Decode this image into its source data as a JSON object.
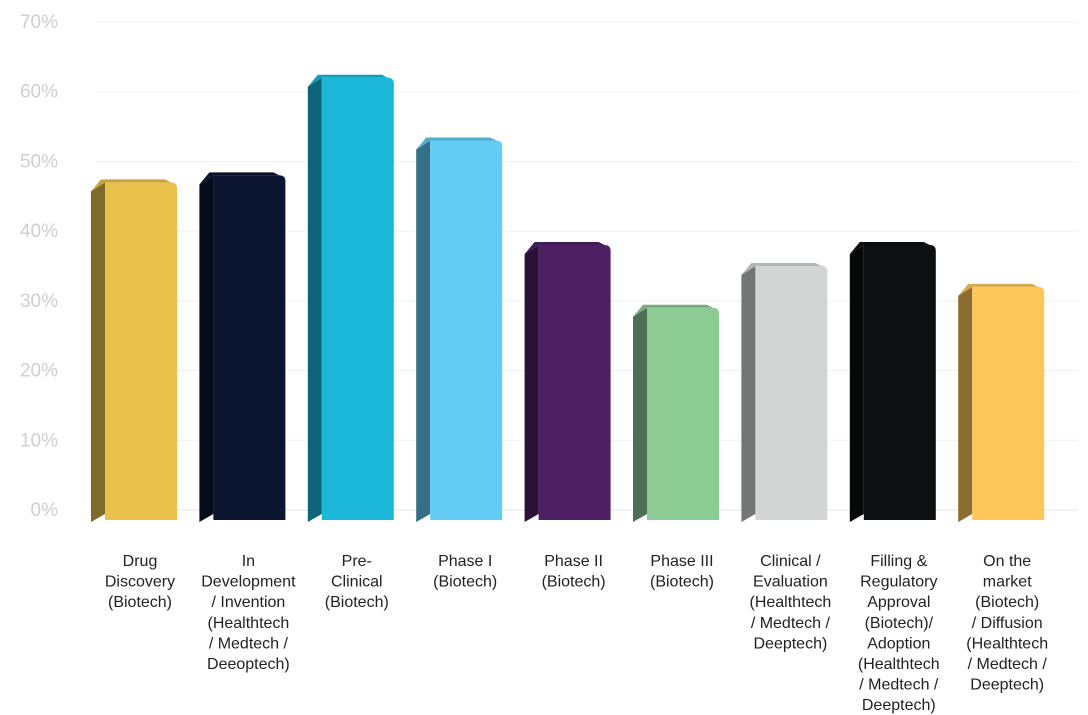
{
  "chart_data": {
    "type": "bar",
    "title": "",
    "xlabel": "",
    "ylabel": "",
    "ylim": [
      0,
      70
    ],
    "yticks": [
      "0%",
      "10%",
      "20%",
      "30%",
      "40%",
      "50%",
      "60%",
      "70%"
    ],
    "grid": true,
    "legend": "none",
    "categories": [
      "Drug Discovery (Biotech)",
      "In Development / Invention (Healthtech / Medtech / Deeoptech)",
      "Pre-Clinical (Biotech)",
      "Phase I (Biotech)",
      "Phase II (Biotech)",
      "Phase III (Biotech)",
      "Clinical / Evaluation (Healthtech / Medtech / Deeptech)",
      "Filling & Regulatory Approval (Biotech)/ Adoption (Healthtech / Medtech / Deeptech)",
      "On the market (Biotech) / Diffusion (Healthtech / Medtech / Deeptech)"
    ],
    "category_label_lines": [
      [
        "Drug",
        "Discovery",
        "(Biotech)"
      ],
      [
        "In",
        "Development",
        "/ Invention",
        "(Healthtech",
        "/ Medtech /",
        "Deeoptech)"
      ],
      [
        "Pre-",
        "Clinical",
        "(Biotech)"
      ],
      [
        "Phase I",
        "(Biotech)"
      ],
      [
        "Phase II",
        "(Biotech)"
      ],
      [
        "Phase III",
        "(Biotech)"
      ],
      [
        "Clinical /",
        "Evaluation",
        "(Healthtech",
        "/ Medtech /",
        "Deeptech)"
      ],
      [
        "Filling &",
        "Regulatory",
        "Approval",
        "(Biotech)/",
        "Adoption",
        "(Healthtech",
        "/ Medtech /",
        "Deeptech)"
      ],
      [
        "On the",
        "market",
        "(Biotech)",
        "/ Diffusion",
        "(Healthtech",
        "/ Medtech /",
        "Deeptech)"
      ]
    ],
    "values": [
      46,
      47,
      61,
      52,
      37,
      28,
      34,
      37,
      31
    ],
    "colors": [
      "#E9C04A",
      "#0C1530",
      "#1BB8D9",
      "#62CCF4",
      "#4E1F63",
      "#8DCB95",
      "#D3D5D5",
      "#0D0F13",
      "#FDC759"
    ]
  }
}
